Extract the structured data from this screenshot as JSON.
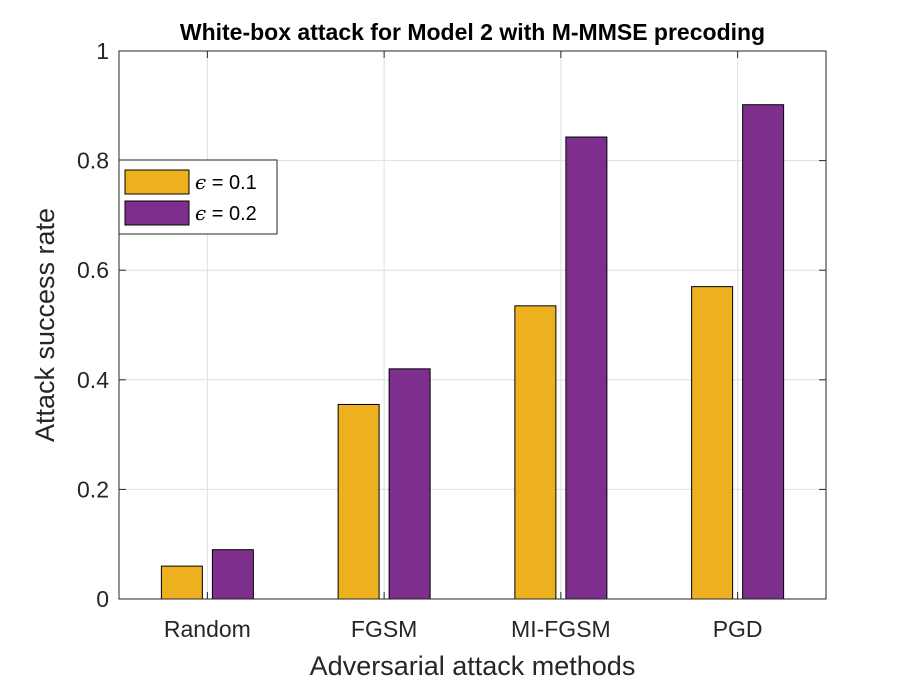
{
  "chart_data": {
    "type": "bar",
    "title": "White-box attack for Model 2 with M-MMSE precoding",
    "xlabel": "Adversarial attack methods",
    "ylabel": "Attack success rate",
    "categories": [
      "Random",
      "FGSM",
      "MI-FGSM",
      "PGD"
    ],
    "ylim": [
      0,
      1
    ],
    "yticks": [
      0,
      0.2,
      0.4,
      0.6,
      0.8,
      1
    ],
    "ytick_labels": [
      "0",
      "0.2",
      "0.4",
      "0.6",
      "0.8",
      "1"
    ],
    "grid": true,
    "legend_position": "upper-left",
    "series": [
      {
        "name": "ε = 0.1",
        "symbol": "ϵ",
        "label_rest": " = 0.1",
        "color": "#EDB120",
        "values": [
          0.06,
          0.355,
          0.535,
          0.57
        ]
      },
      {
        "name": "ε = 0.2",
        "symbol": "ϵ",
        "label_rest": " = 0.2",
        "color": "#7E2F8E",
        "values": [
          0.09,
          0.42,
          0.843,
          0.902
        ]
      }
    ]
  }
}
